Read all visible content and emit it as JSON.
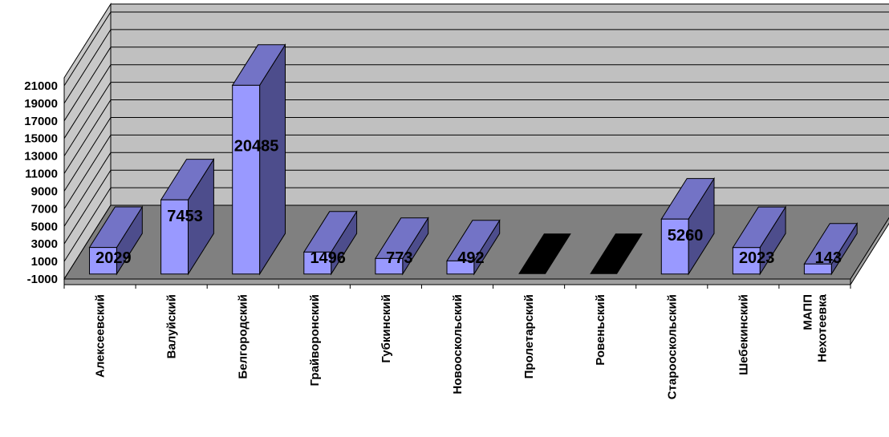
{
  "chart_data": {
    "type": "bar",
    "categories": [
      "Алексеевский",
      "Валуйский",
      "Белгородский",
      "Грайворонский",
      "Губкинский",
      "Новооскольский",
      "Пролетарский",
      "Ровеньский",
      "Старооскольский",
      "Шебекинский",
      [
        "МАПП",
        "Нехотеевка"
      ]
    ],
    "values": [
      2029,
      7453,
      20485,
      1496,
      773,
      492,
      null,
      null,
      5260,
      2023,
      143
    ],
    "data_labels": [
      "2029",
      "7453",
      "20485",
      "1496",
      "773",
      "492",
      "",
      "",
      "5260",
      "2023",
      "143"
    ],
    "y_ticks": [
      "21000",
      "19000",
      "17000",
      "15000",
      "13000",
      "11000",
      "9000",
      "7000",
      "5000",
      "3000",
      "1000",
      "-1000"
    ],
    "ylim": [
      -1000,
      21000
    ],
    "grid": true,
    "legend": "none",
    "colors": {
      "bar_front": "#9999ff",
      "bar_side": "#4d4d8c",
      "bar_top": "#7373c6",
      "back_wall": "#c0c0c0",
      "side_wall": "#c8c8c8",
      "floor": "#808080",
      "floor_front": "#a0a0a0",
      "empty_marker": "#000000"
    }
  }
}
